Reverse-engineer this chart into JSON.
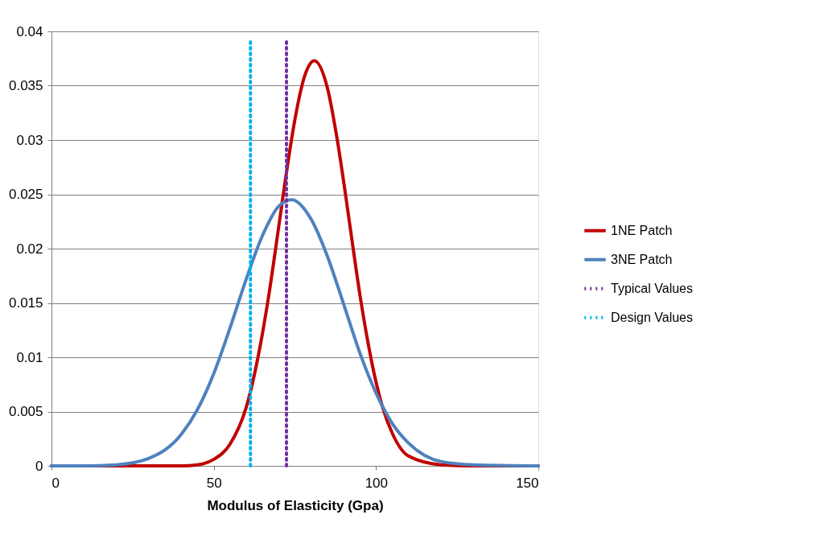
{
  "chart_data": {
    "type": "line",
    "xlabel": "Modulus of Elasticity (Gpa)",
    "xlim": [
      0,
      150
    ],
    "xticks": [
      0,
      50,
      100,
      150
    ],
    "ylim": [
      0,
      0.04
    ],
    "yticks": [
      0,
      0.005,
      0.01,
      0.015,
      0.02,
      0.025,
      0.03,
      0.035,
      0.04
    ],
    "grid": "y",
    "legend": "right",
    "marker": "none",
    "series": [
      {
        "name": "1NE Patch",
        "color": "#c00000",
        "line_style": "solid",
        "x": [
          0,
          30,
          40,
          45,
          50,
          55,
          60,
          65,
          67,
          70,
          72,
          75,
          78,
          81,
          85,
          88,
          90,
          92,
          95,
          97,
          100,
          102,
          105,
          110,
          120,
          130,
          150
        ],
        "values": [
          0,
          0,
          0,
          0.0001,
          0.0006,
          0.002,
          0.0054,
          0.0122,
          0.0158,
          0.022,
          0.0262,
          0.0319,
          0.0359,
          0.0373,
          0.0348,
          0.0301,
          0.0262,
          0.022,
          0.0158,
          0.0122,
          0.0077,
          0.0054,
          0.003,
          0.0009,
          0.0001,
          0,
          0
        ]
      },
      {
        "name": "3NE Patch",
        "color": "#4f81bd",
        "line_style": "solid",
        "x": [
          0,
          10,
          20,
          30,
          40,
          45,
          50,
          55,
          60,
          65,
          70,
          74,
          80,
          85,
          90,
          95,
          100,
          105,
          110,
          120,
          130,
          150
        ],
        "values": [
          0,
          0,
          0.0001,
          0.0007,
          0.0029,
          0.0052,
          0.0085,
          0.0127,
          0.0172,
          0.0212,
          0.0239,
          0.0245,
          0.0227,
          0.0193,
          0.0149,
          0.0104,
          0.0067,
          0.0039,
          0.0021,
          0.0004,
          0.0001,
          0
        ]
      },
      {
        "name": "Typical Values",
        "color": "#7030a0",
        "line_style": "dotted",
        "x": [
          72.4,
          72.4
        ],
        "values": [
          0,
          0.0394
        ]
      },
      {
        "name": "Design Values",
        "color": "#00b0f0",
        "line_style": "dotted",
        "x": [
          61.3,
          61.3
        ],
        "values": [
          0,
          0.0394
        ]
      }
    ]
  }
}
